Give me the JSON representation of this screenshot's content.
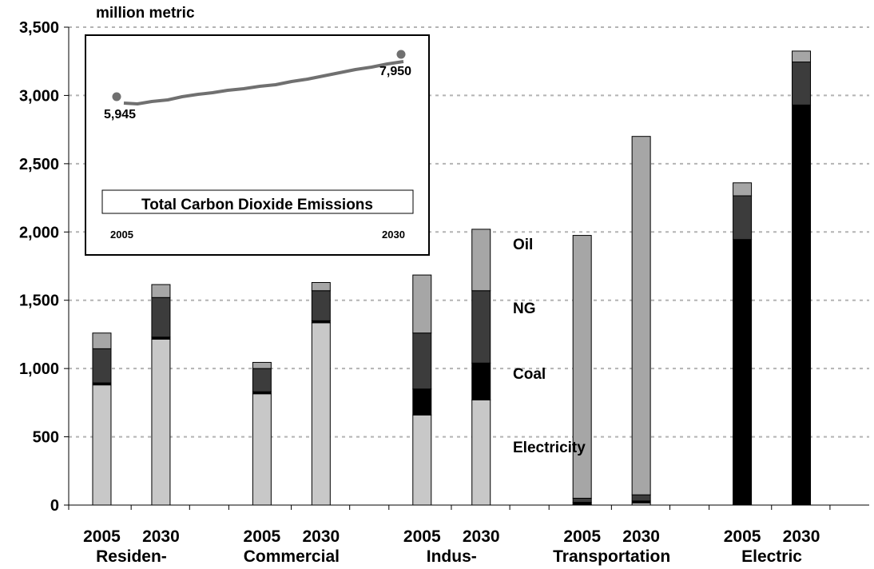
{
  "chart_data": {
    "type": "bar",
    "stacked": true,
    "y_unit_label": "million metric",
    "ylim": [
      0,
      3500
    ],
    "yticks": [
      "0",
      "500",
      "1,000",
      "1,500",
      "2,000",
      "2,500",
      "3,000",
      "3,500"
    ],
    "grid": true,
    "groups": [
      {
        "label": "Residen-",
        "bars": [
          {
            "year": "2005",
            "electricity": 880,
            "coal": 15,
            "ng": 250,
            "oil": 115
          },
          {
            "year": "2030",
            "electricity": 1215,
            "coal": 15,
            "ng": 290,
            "oil": 95
          }
        ]
      },
      {
        "label": "Commercial",
        "bars": [
          {
            "year": "2005",
            "electricity": 815,
            "coal": 15,
            "ng": 170,
            "oil": 45
          },
          {
            "year": "2030",
            "electricity": 1335,
            "coal": 15,
            "ng": 220,
            "oil": 60
          }
        ]
      },
      {
        "label": "Indus-",
        "bars": [
          {
            "year": "2005",
            "electricity": 660,
            "coal": 190,
            "ng": 410,
            "oil": 425
          },
          {
            "year": "2030",
            "electricity": 770,
            "coal": 270,
            "ng": 530,
            "oil": 450
          }
        ]
      },
      {
        "label": "Transportation",
        "bars": [
          {
            "year": "2005",
            "electricity": 5,
            "coal": 15,
            "ng": 30,
            "oil": 1925
          },
          {
            "year": "2030",
            "electricity": 15,
            "coal": 15,
            "ng": 45,
            "oil": 2625
          }
        ]
      },
      {
        "label": "Electric",
        "bars": [
          {
            "year": "2005",
            "electricity": 0,
            "coal": 1945,
            "ng": 320,
            "oil": 95
          },
          {
            "year": "2030",
            "electricity": 0,
            "coal": 2930,
            "ng": 315,
            "oil": 80
          }
        ]
      }
    ],
    "stack_labels": [
      "Oil",
      "NG",
      "Coal",
      "Electricity"
    ],
    "colors": {
      "electricity": "#c8c8c8",
      "coal": "#000000",
      "ng": "#3c3c3c",
      "oil": "#a6a6a6"
    },
    "inset": {
      "type": "line",
      "title": "Total Carbon Dioxide Emissions",
      "x_start_label": "2005",
      "x_end_label": "2030",
      "start_value_label": "5,945",
      "end_value_label": "7,950",
      "line_color": "#707070"
    }
  }
}
